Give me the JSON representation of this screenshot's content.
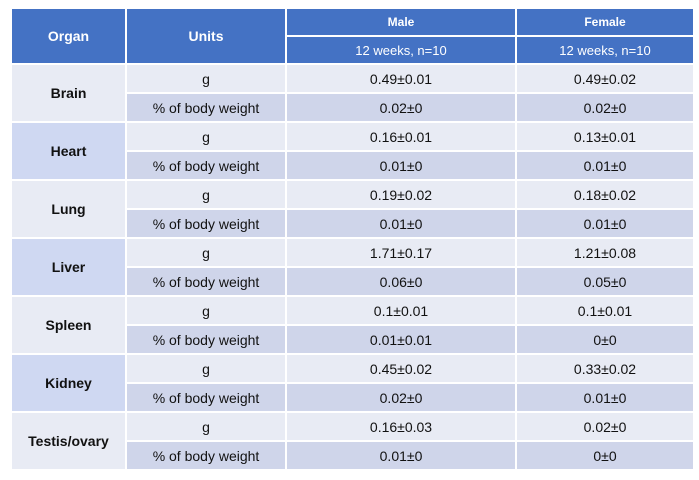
{
  "table": {
    "headers": {
      "organ": "Organ",
      "units": "Units",
      "male": "Male",
      "female": "Female",
      "male_sub": "12 weeks, n=10",
      "female_sub": "12 weeks, n=10"
    },
    "rows": [
      {
        "organ": "Brain",
        "g_unit": "g",
        "g_male": "0.49±0.01",
        "g_female": "0.49±0.02",
        "p_unit": "% of body weight",
        "p_male": "0.02±0",
        "p_female": "0.02±0"
      },
      {
        "organ": "Heart",
        "g_unit": "g",
        "g_male": "0.16±0.01",
        "g_female": "0.13±0.01",
        "p_unit": "% of body weight",
        "p_male": "0.01±0",
        "p_female": "0.01±0"
      },
      {
        "organ": "Lung",
        "g_unit": "g",
        "g_male": "0.19±0.02",
        "g_female": "0.18±0.02",
        "p_unit": "% of body weight",
        "p_male": "0.01±0",
        "p_female": "0.01±0"
      },
      {
        "organ": "Liver",
        "g_unit": "g",
        "g_male": "1.71±0.17",
        "g_female": "1.21±0.08",
        "p_unit": "% of body weight",
        "p_male": "0.06±0",
        "p_female": "0.05±0"
      },
      {
        "organ": "Spleen",
        "g_unit": "g",
        "g_male": "0.1±0.01",
        "g_female": "0.1±0.01",
        "p_unit": "% of body weight",
        "p_male": "0.01±0.01",
        "p_female": "0±0"
      },
      {
        "organ": "Kidney",
        "g_unit": "g",
        "g_male": "0.45±0.02",
        "g_female": "0.33±0.02",
        "p_unit": "% of body weight",
        "p_male": "0.02±0",
        "p_female": "0.01±0"
      },
      {
        "organ": "Testis/ovary",
        "g_unit": "g",
        "g_male": "0.16±0.03",
        "g_female": "0.02±0",
        "p_unit": "% of body weight",
        "p_male": "0.01±0",
        "p_female": "0±0"
      }
    ]
  },
  "colors": {
    "header_bg": "#4472c4",
    "row_light": "#e8ebf4",
    "row_dark": "#cfd5ea",
    "organ_dark": "#cfd8f2"
  }
}
